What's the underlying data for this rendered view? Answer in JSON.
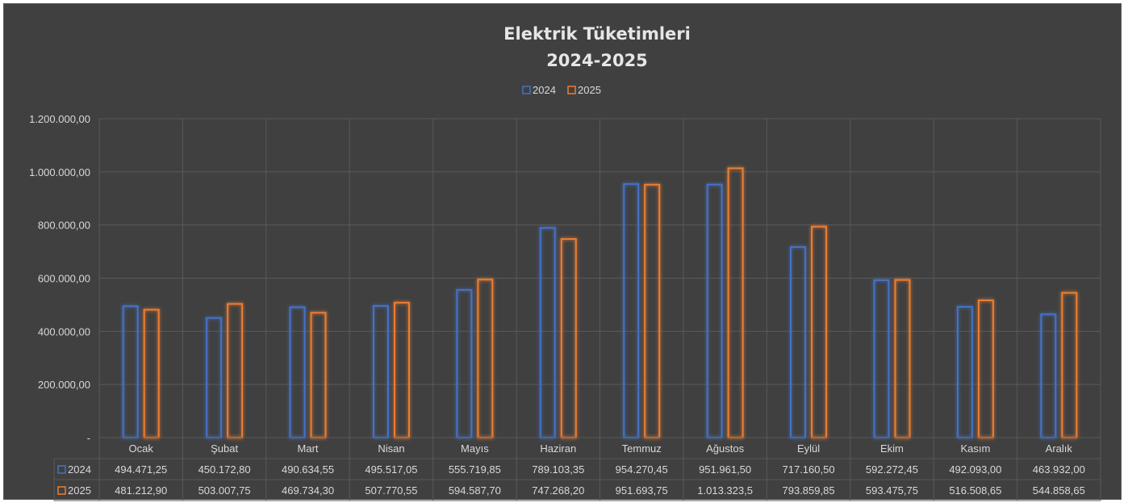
{
  "colors": {
    "background": "#404040",
    "grid": "#595959",
    "text": "#d9d9d9",
    "series_2024": "#4472c4",
    "series_2025": "#ed7d31"
  },
  "chart_data": {
    "type": "bar",
    "title": [
      "Elektrik Tüketimleri",
      "2024-2025"
    ],
    "legend_placement": "top-center",
    "grid": true,
    "ylim": [
      0,
      1200000
    ],
    "y_ticks": [
      0,
      200000,
      400000,
      600000,
      800000,
      1000000,
      1200000
    ],
    "y_tick_labels": [
      "-",
      "200.000,00",
      "400.000,00",
      "600.000,00",
      "800.000,00",
      "1.000.000,00",
      "1.200.000,00"
    ],
    "categories": [
      "Ocak",
      "Şubat",
      "Mart",
      "Nisan",
      "Mayıs",
      "Haziran",
      "Temmuz",
      "Ağustos",
      "Eylül",
      "Ekim",
      "Kasım",
      "Aralık"
    ],
    "series": [
      {
        "name": "2024",
        "values": [
          494471.25,
          450172.8,
          490634.55,
          495517.05,
          555719.85,
          789103.35,
          954270.45,
          951961.5,
          717160.5,
          592272.45,
          492093.0,
          463932.0
        ],
        "labels": [
          "494.471,25",
          "450.172,80",
          "490.634,55",
          "495.517,05",
          "555.719,85",
          "789.103,35",
          "954.270,45",
          "951.961,50",
          "717.160,50",
          "592.272,45",
          "492.093,00",
          "463.932,00"
        ]
      },
      {
        "name": "2025",
        "values": [
          481212.9,
          503007.75,
          469734.3,
          507770.55,
          594587.7,
          747268.2,
          951693.75,
          1013323.5,
          793859.85,
          593475.75,
          516508.65,
          544858.65
        ],
        "labels": [
          "481.212,90",
          "503.007,75",
          "469.734,30",
          "507.770,55",
          "594.587,70",
          "747.268,20",
          "951.693,75",
          "1.013.323,5",
          "793.859,85",
          "593.475,75",
          "516.508,65",
          "544.858,65"
        ]
      }
    ]
  }
}
